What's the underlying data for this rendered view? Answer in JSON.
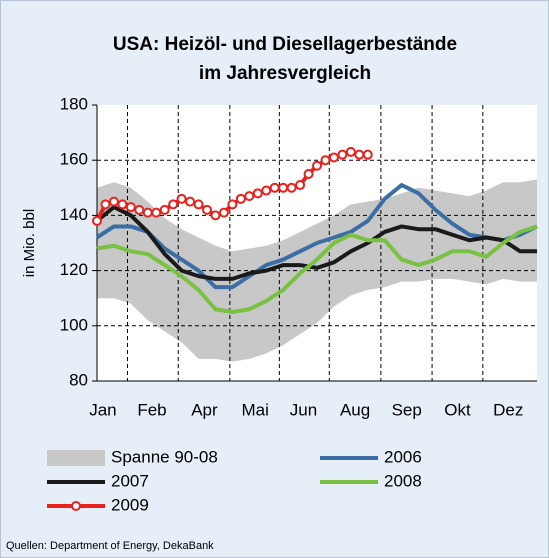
{
  "chart_data": {
    "type": "line",
    "title": [
      "USA: Heizöl- und Diesellagerbestände",
      "im Jahresvergleich"
    ],
    "ylabel": "in Mio. bbl",
    "source": "Quellen: Department of Energy, DekaBank",
    "x": [
      0,
      2,
      4,
      6,
      8,
      10,
      12,
      14,
      16,
      18,
      20,
      22,
      24,
      26,
      28,
      30,
      32,
      34,
      36,
      38,
      40,
      42,
      44,
      46,
      48,
      50,
      52
    ],
    "xlim": [
      0,
      52
    ],
    "xticks": [
      {
        "value": 0.7,
        "label": "Jan"
      },
      {
        "value": 6.5,
        "label": "Feb"
      },
      {
        "value": 12.7,
        "label": "Apr"
      },
      {
        "value": 18.7,
        "label": "Mai"
      },
      {
        "value": 24.4,
        "label": "Jun"
      },
      {
        "value": 30.5,
        "label": "Aug"
      },
      {
        "value": 36.6,
        "label": "Sep"
      },
      {
        "value": 42.6,
        "label": "Okt"
      },
      {
        "value": 48.6,
        "label": "Dez"
      }
    ],
    "ylim": [
      80,
      180
    ],
    "yticks": [
      80,
      100,
      120,
      140,
      160,
      180
    ],
    "grid": true,
    "range": {
      "name": "Spanne 90-08",
      "color": "#c8c8c8",
      "low": [
        110,
        110,
        108,
        102,
        98,
        94,
        88,
        88,
        87,
        88,
        90,
        93,
        97,
        101,
        107,
        111,
        113,
        114,
        116,
        116,
        117,
        117,
        116,
        115,
        117,
        116,
        116
      ],
      "high": [
        150,
        152,
        150,
        145,
        139,
        135,
        132,
        129,
        127,
        128,
        129,
        131,
        134,
        137,
        140,
        144,
        145,
        146,
        148,
        150,
        149,
        148,
        147,
        149,
        152,
        152,
        153
      ]
    },
    "series": [
      {
        "name": "2006",
        "color": "#3a6ea5",
        "values": [
          132,
          136,
          136,
          134,
          128,
          124,
          120,
          114,
          114,
          118,
          122,
          124,
          127,
          130,
          132,
          134,
          138,
          146,
          151,
          148,
          142,
          137,
          133,
          132,
          131,
          133,
          136
        ]
      },
      {
        "name": "2007",
        "color": "#1a1a1a",
        "values": [
          138,
          143,
          140,
          134,
          126,
          120,
          118,
          117,
          117,
          119,
          120,
          122,
          122,
          121,
          123,
          127,
          130,
          134,
          136,
          135,
          135,
          133,
          131,
          132,
          131,
          127,
          127
        ]
      },
      {
        "name": "2008",
        "color": "#7ac143",
        "values": [
          128,
          129,
          127,
          126,
          122,
          118,
          113,
          106,
          105,
          106,
          109,
          113,
          119,
          124,
          130,
          133,
          131,
          131,
          124,
          122,
          124,
          127,
          127,
          125,
          130,
          134,
          136
        ]
      },
      {
        "name": "2009",
        "color": "#e8211e",
        "markers": true,
        "x": [
          0,
          1,
          2,
          3,
          4,
          5,
          6,
          7,
          8,
          9,
          10,
          11,
          12,
          13,
          14,
          15,
          16,
          17,
          18,
          19,
          20,
          21,
          22,
          23,
          24,
          25,
          26,
          27,
          28,
          29,
          30,
          31,
          32
        ],
        "values": [
          138,
          144,
          145,
          144,
          143,
          142,
          141,
          141,
          142,
          144,
          146,
          145,
          144,
          142,
          140,
          141,
          144,
          146,
          147,
          148,
          149,
          150,
          150,
          150,
          151,
          155,
          158,
          160,
          161,
          162,
          163,
          162,
          162
        ]
      }
    ]
  }
}
